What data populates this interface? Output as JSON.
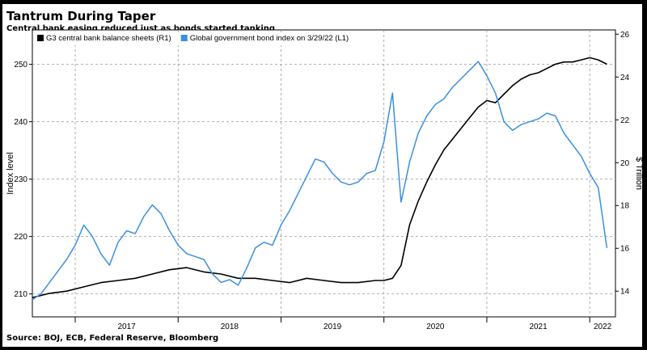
{
  "header": {
    "title": "Tantrum During Taper",
    "subtitle": "Central bank easing reduced just as bonds started tanking"
  },
  "footer": {
    "source": "Source: BOJ, ECB, Federal Reserve, Bloomberg"
  },
  "colors": {
    "background": "#ffffff",
    "frame": "#000000",
    "balance_sheets": "#000000",
    "bond_index": "#3b8fe0",
    "grid": "#9a9a9a"
  },
  "chart_data": {
    "type": "line",
    "title": "Tantrum During Taper",
    "subtitle": "Central bank easing reduced just as bonds started tanking",
    "xlabel": "",
    "x_ticks": [
      "2017",
      "2018",
      "2019",
      "2020",
      "2021",
      "2022"
    ],
    "x_range": [
      "2016-08",
      "2022-04"
    ],
    "grid": true,
    "legend_position": "top-left",
    "left_axis": {
      "label": "Index level",
      "ticks": [
        210,
        220,
        230,
        240,
        250
      ],
      "range": [
        206,
        256
      ]
    },
    "right_axis": {
      "label": "$ Trillion",
      "ticks": [
        14,
        16,
        18,
        20,
        22,
        24,
        26
      ],
      "range": [
        12.8,
        26.2
      ]
    },
    "series": [
      {
        "name": "G3 central bank balance sheets (R1)",
        "axis": "right",
        "color": "#000000",
        "x": [
          "2016-08",
          "2016-10",
          "2016-12",
          "2017-02",
          "2017-04",
          "2017-06",
          "2017-08",
          "2017-10",
          "2017-12",
          "2018-02",
          "2018-04",
          "2018-06",
          "2018-08",
          "2018-10",
          "2018-12",
          "2019-02",
          "2019-04",
          "2019-06",
          "2019-08",
          "2019-10",
          "2019-12",
          "2020-01",
          "2020-02",
          "2020-03",
          "2020-04",
          "2020-05",
          "2020-06",
          "2020-07",
          "2020-08",
          "2020-09",
          "2020-10",
          "2020-11",
          "2020-12",
          "2021-01",
          "2021-02",
          "2021-03",
          "2021-04",
          "2021-05",
          "2021-06",
          "2021-07",
          "2021-08",
          "2021-09",
          "2021-10",
          "2021-11",
          "2021-12",
          "2022-01",
          "2022-02",
          "2022-03"
        ],
        "values": [
          13.7,
          13.9,
          14.0,
          14.2,
          14.4,
          14.5,
          14.6,
          14.8,
          15.0,
          15.1,
          14.9,
          14.8,
          14.6,
          14.6,
          14.5,
          14.4,
          14.6,
          14.5,
          14.4,
          14.4,
          14.5,
          14.5,
          14.6,
          15.2,
          17.1,
          18.2,
          19.1,
          19.9,
          20.6,
          21.1,
          21.6,
          22.1,
          22.6,
          22.9,
          22.8,
          23.2,
          23.6,
          23.9,
          24.1,
          24.2,
          24.4,
          24.6,
          24.7,
          24.7,
          24.8,
          24.9,
          24.8,
          24.6
        ]
      },
      {
        "name": "Global government bond index on 3/29/22 (L1)",
        "axis": "left",
        "color": "#3b8fe0",
        "x": [
          "2016-08",
          "2016-09",
          "2016-10",
          "2016-11",
          "2016-12",
          "2017-01",
          "2017-02",
          "2017-03",
          "2017-04",
          "2017-05",
          "2017-06",
          "2017-07",
          "2017-08",
          "2017-09",
          "2017-10",
          "2017-11",
          "2017-12",
          "2018-01",
          "2018-02",
          "2018-03",
          "2018-04",
          "2018-05",
          "2018-06",
          "2018-07",
          "2018-08",
          "2018-09",
          "2018-10",
          "2018-11",
          "2018-12",
          "2019-01",
          "2019-02",
          "2019-03",
          "2019-04",
          "2019-05",
          "2019-06",
          "2019-07",
          "2019-08",
          "2019-09",
          "2019-10",
          "2019-11",
          "2019-12",
          "2020-01",
          "2020-02",
          "2020-03",
          "2020-04",
          "2020-05",
          "2020-06",
          "2020-07",
          "2020-08",
          "2020-09",
          "2020-10",
          "2020-11",
          "2020-12",
          "2021-01",
          "2021-02",
          "2021-03",
          "2021-04",
          "2021-05",
          "2021-06",
          "2021-07",
          "2021-08",
          "2021-09",
          "2021-10",
          "2021-11",
          "2021-12",
          "2022-01",
          "2022-02",
          "2022-03"
        ],
        "values": [
          209.0,
          210.0,
          212.0,
          214.0,
          216.0,
          218.5,
          222.0,
          220.0,
          217.0,
          215.0,
          219.0,
          221.0,
          220.5,
          223.5,
          225.5,
          224.0,
          221.0,
          218.5,
          217.0,
          216.5,
          216.0,
          213.5,
          212.0,
          212.5,
          211.5,
          214.5,
          218.0,
          219.0,
          218.5,
          222.0,
          224.5,
          227.5,
          230.5,
          233.5,
          233.0,
          231.0,
          229.5,
          229.0,
          229.5,
          231.0,
          231.5,
          236.5,
          245.0,
          226.0,
          233.0,
          238.0,
          241.0,
          243.0,
          244.0,
          246.0,
          247.5,
          249.0,
          250.5,
          248.0,
          245.0,
          240.0,
          238.5,
          239.5,
          240.0,
          240.5,
          241.5,
          241.0,
          238.0,
          236.0,
          234.0,
          231.0,
          228.5,
          218.0
        ]
      }
    ]
  }
}
